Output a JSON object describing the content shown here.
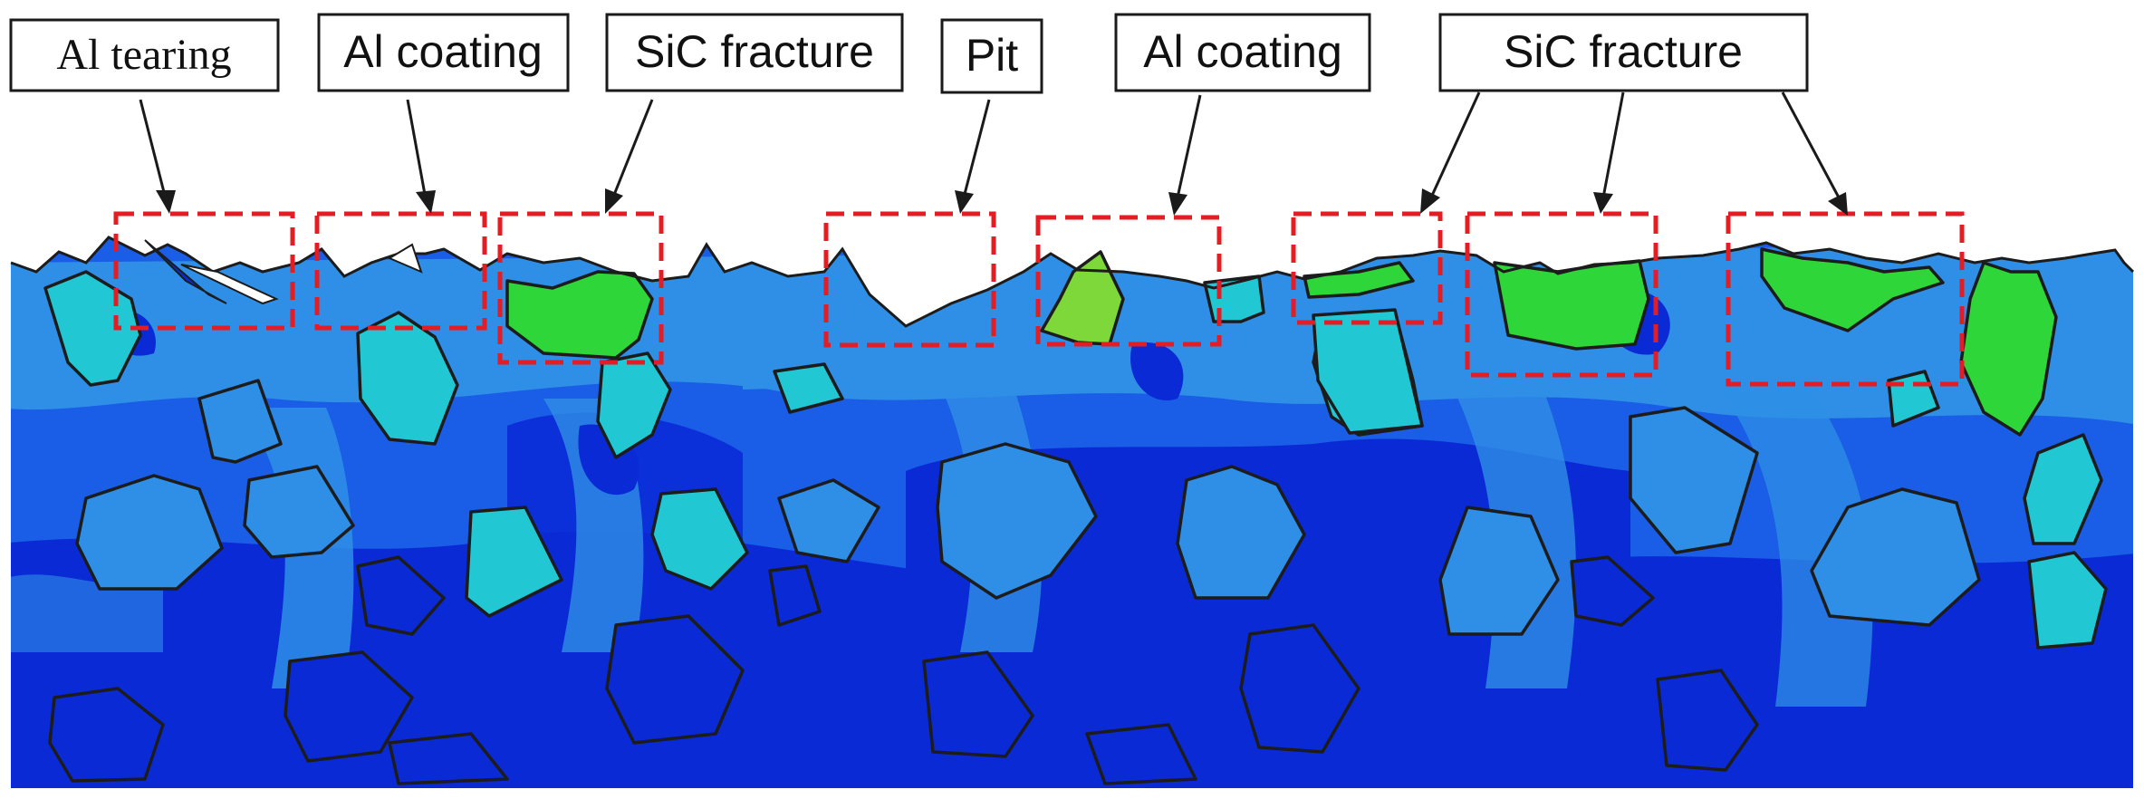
{
  "figure": {
    "labels": [
      {
        "id": "al-tearing",
        "text": "Al tearing"
      },
      {
        "id": "al-coating-1",
        "text": "Al coating"
      },
      {
        "id": "sic-fracture-1",
        "text": "SiC fracture"
      },
      {
        "id": "pit",
        "text": "Pit"
      },
      {
        "id": "al-coating-2",
        "text": "Al coating"
      },
      {
        "id": "sic-fracture-2",
        "text": "SiC fracture"
      }
    ],
    "colors": {
      "deep_blue": "#0a2ad6",
      "mid_blue": "#1a5de6",
      "light_blue": "#2f8fe6",
      "cyan": "#22c7d4",
      "green": "#2fd63a",
      "roi_red": "#e31d23",
      "outline": "#1c1c1c"
    }
  }
}
